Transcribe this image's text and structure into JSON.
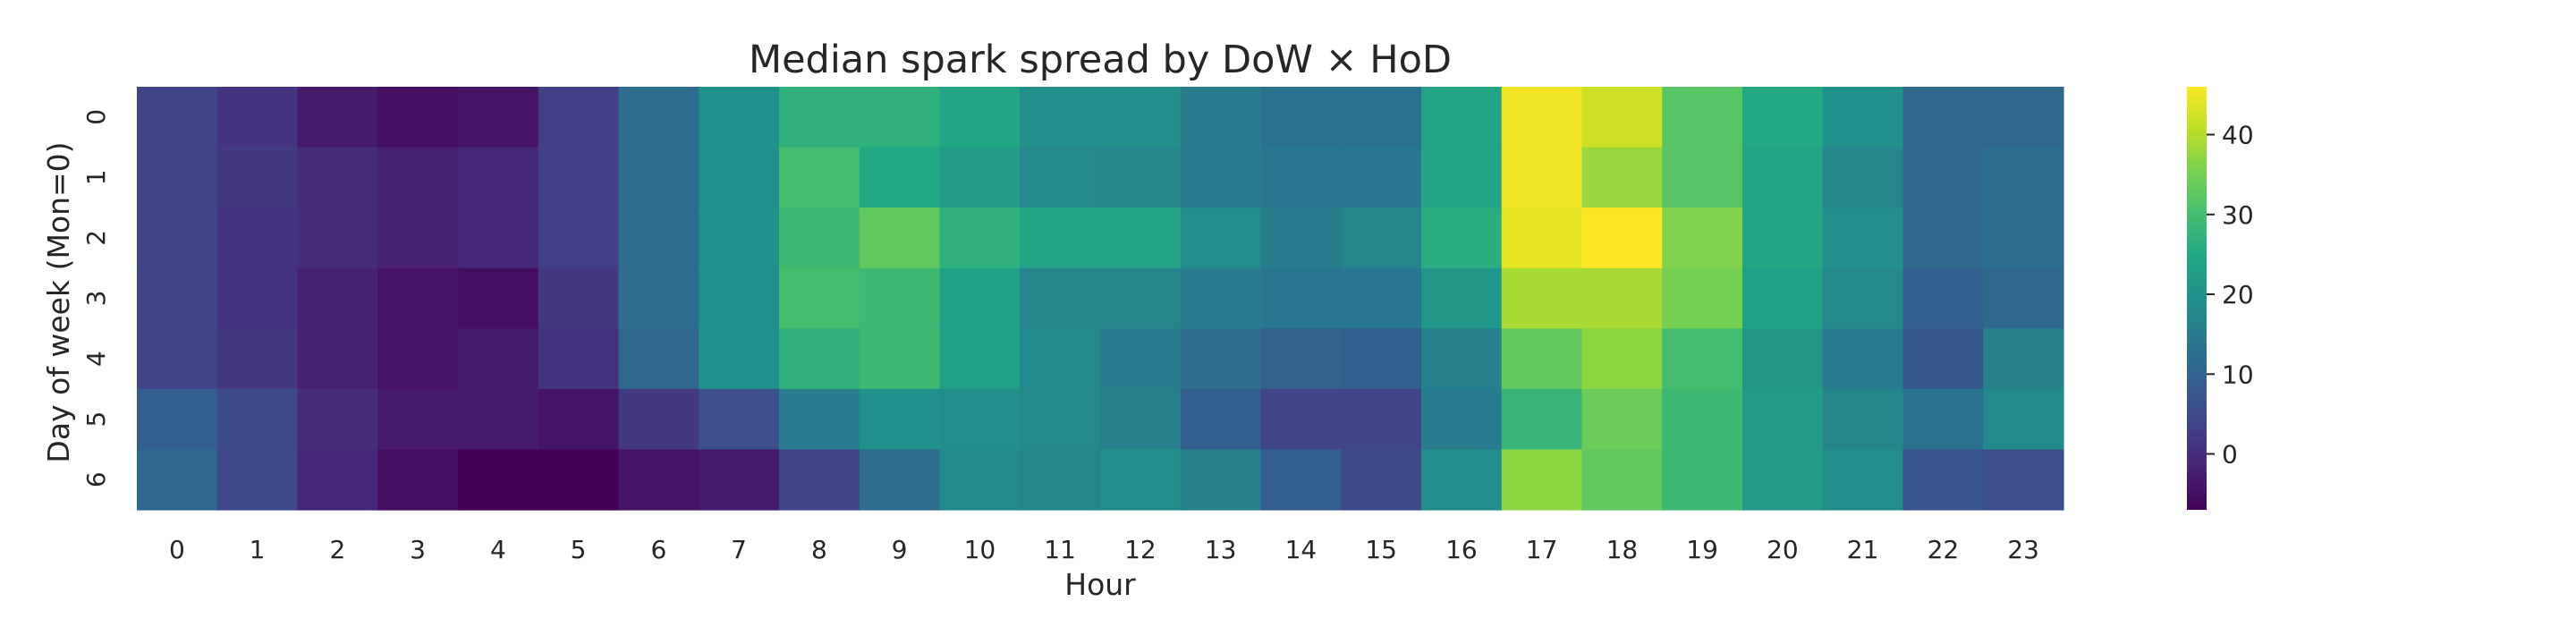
{
  "chart_data": {
    "type": "heatmap",
    "title": "Median spark spread by DoW × HoD",
    "xlabel": "Hour",
    "ylabel": "Day of week (Mon=0)",
    "x_categories": [
      "0",
      "1",
      "2",
      "3",
      "4",
      "5",
      "6",
      "7",
      "8",
      "9",
      "10",
      "11",
      "12",
      "13",
      "14",
      "15",
      "16",
      "17",
      "18",
      "19",
      "20",
      "21",
      "22",
      "23"
    ],
    "y_categories": [
      "0",
      "1",
      "2",
      "3",
      "4",
      "5",
      "6"
    ],
    "values": [
      [
        4,
        1,
        -3,
        -5,
        -4,
        3,
        12,
        20,
        27,
        27,
        24,
        19,
        19,
        15,
        13,
        13,
        24,
        45,
        42,
        32,
        25,
        20,
        11,
        11
      ],
      [
        4,
        2,
        0,
        -2,
        -1,
        3,
        12,
        20,
        30,
        25,
        22,
        18,
        17,
        15,
        14,
        14,
        24,
        45,
        38,
        32,
        24,
        17,
        11,
        12
      ],
      [
        4,
        1,
        0,
        -2,
        -1,
        3,
        12,
        20,
        29,
        33,
        27,
        24,
        24,
        19,
        15,
        17,
        26,
        44,
        46,
        36,
        24,
        19,
        11,
        12
      ],
      [
        4,
        1,
        -2,
        -4,
        -5,
        2,
        12,
        20,
        30,
        29,
        23,
        17,
        17,
        15,
        14,
        14,
        21,
        39,
        39,
        35,
        23,
        18,
        9,
        11
      ],
      [
        4,
        2,
        -2,
        -4,
        -3,
        1,
        11,
        20,
        27,
        29,
        23,
        18,
        15,
        12,
        10,
        9,
        16,
        33,
        37,
        30,
        21,
        15,
        8,
        16
      ],
      [
        9,
        5,
        0,
        -3,
        -3,
        -4,
        2,
        6,
        15,
        20,
        19,
        18,
        16,
        9,
        4,
        4,
        15,
        28,
        34,
        29,
        22,
        17,
        13,
        18
      ],
      [
        11,
        5,
        -1,
        -5,
        -7,
        -8,
        -4,
        -3,
        4,
        12,
        18,
        17,
        19,
        16,
        9,
        5,
        19,
        37,
        33,
        29,
        22,
        19,
        7,
        6
      ]
    ],
    "colorbar": {
      "colormap": "viridis",
      "vmin": -7,
      "vmax": 46,
      "ticks": [
        "0",
        "10",
        "20",
        "30",
        "40"
      ]
    },
    "grid": false
  }
}
